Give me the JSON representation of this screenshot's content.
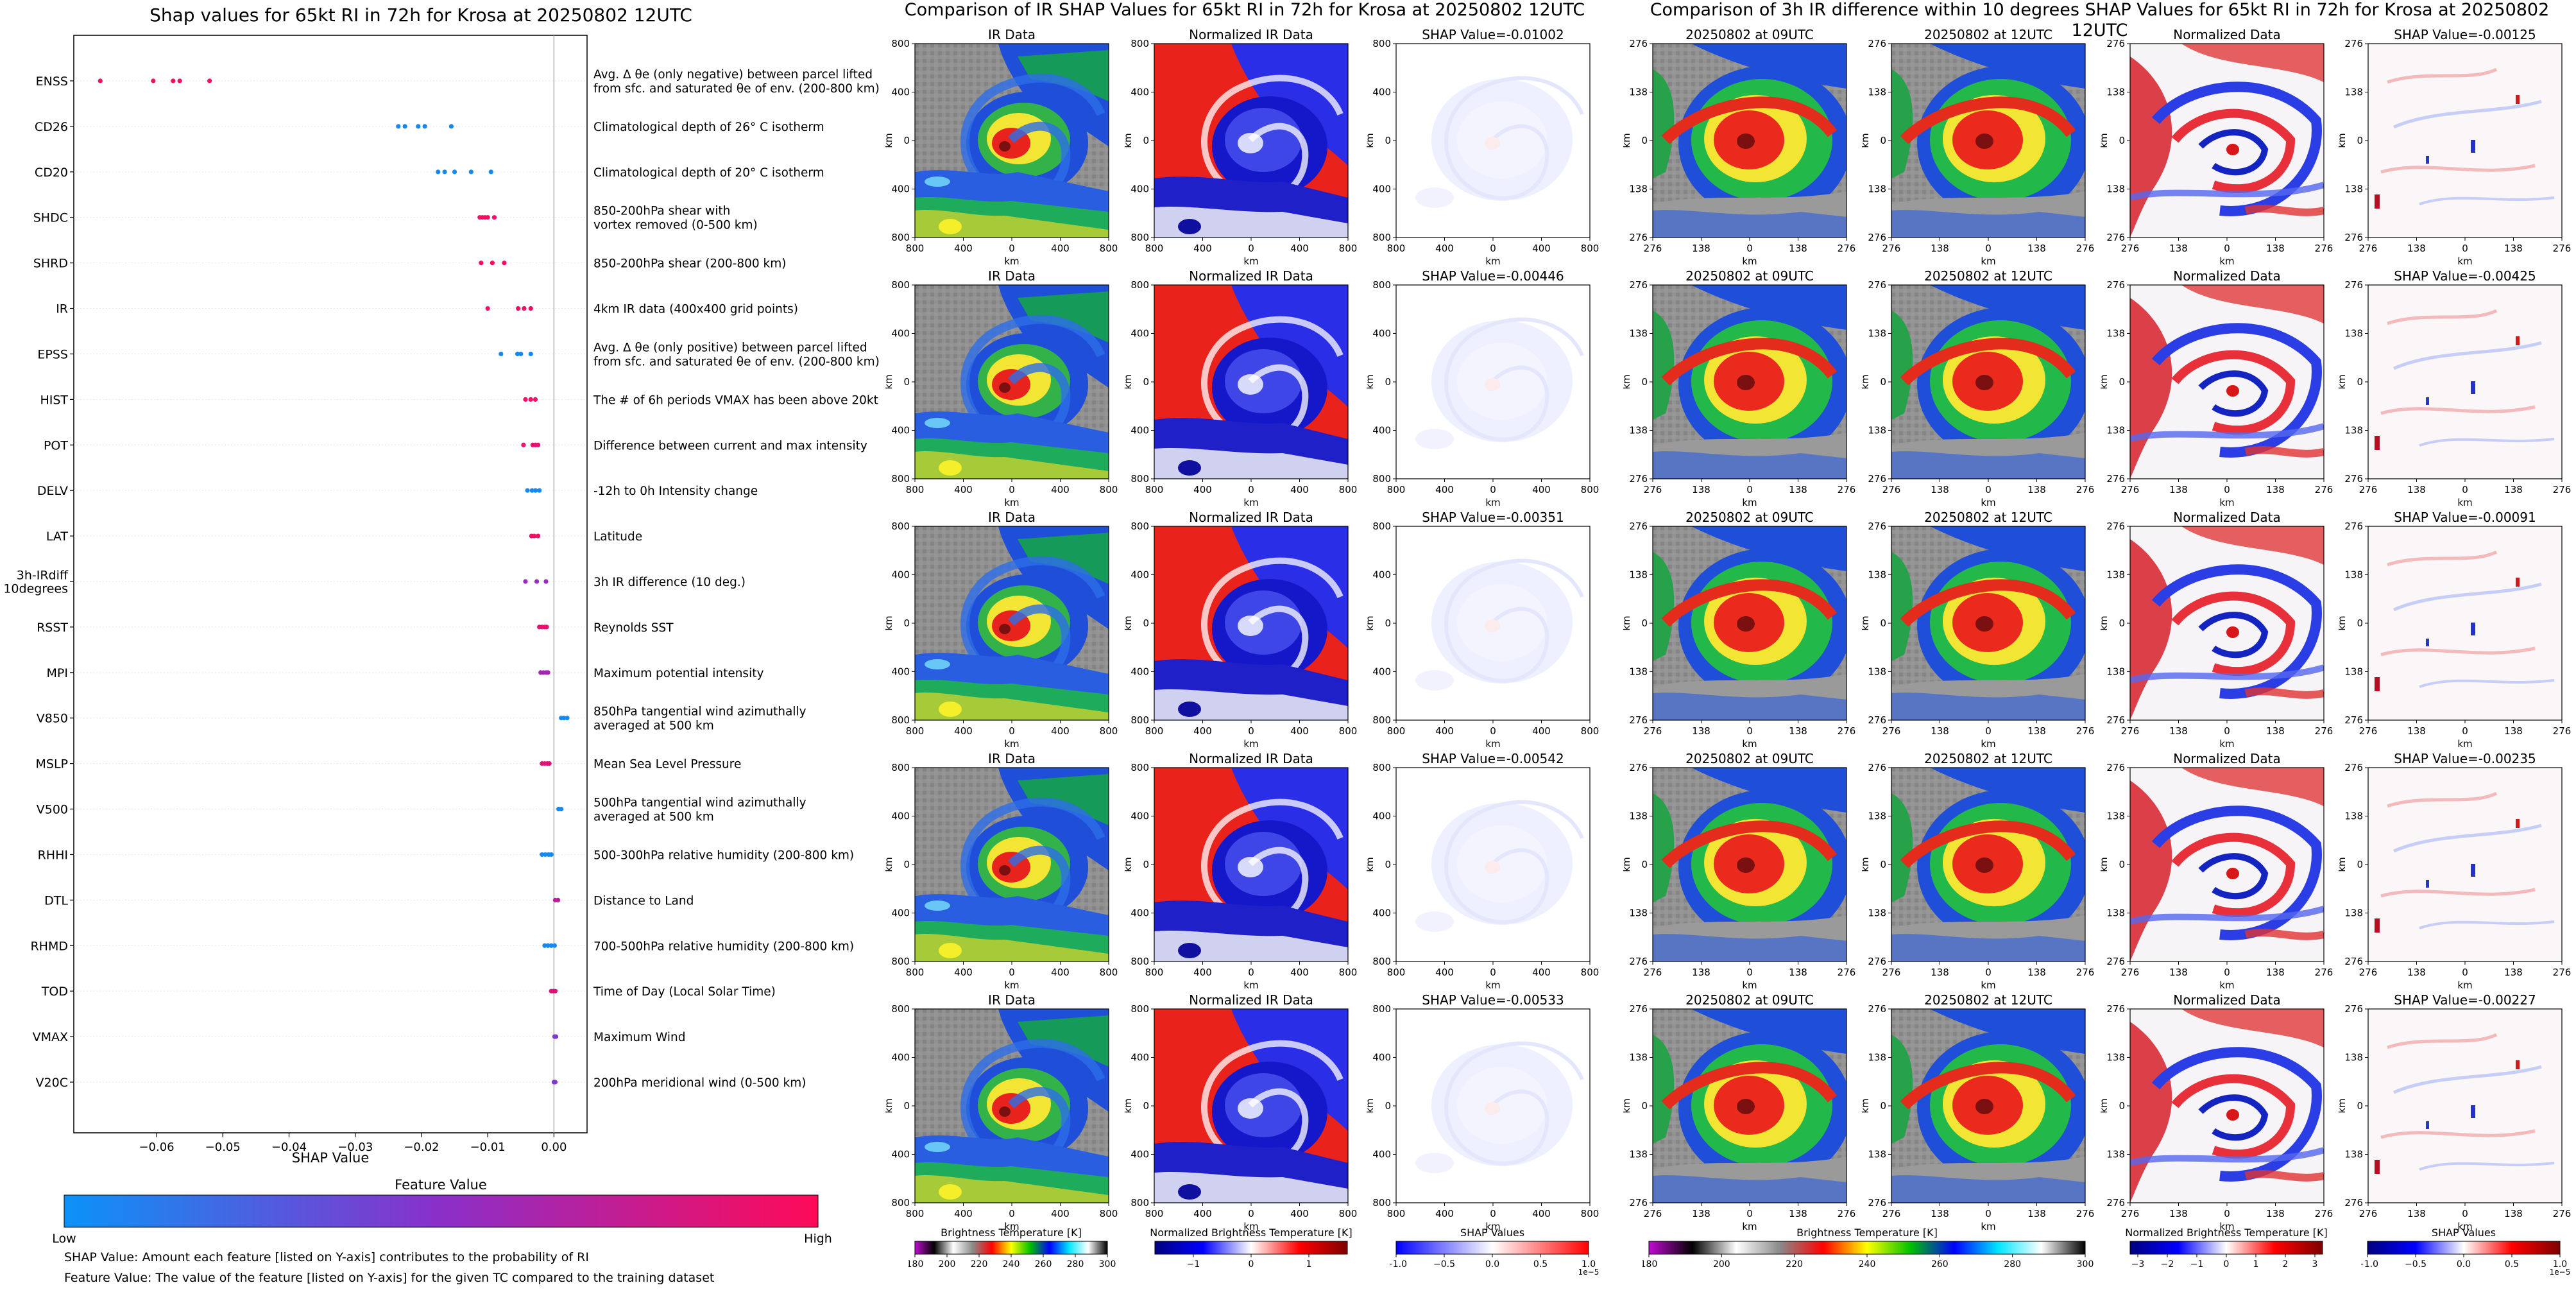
{
  "shap_panel": {
    "title": "Shap values for 65kt RI in 72h for Krosa at 20250802 12UTC",
    "xlabel": "SHAP Value",
    "colorbar_title": "Feature Value",
    "low_label": "Low",
    "high_label": "High",
    "footnote_1": "SHAP Value: Amount each feature [listed on Y-axis] contributes to the probability of RI",
    "footnote_2": "Feature Value: The value of the feature [listed on Y-axis] for the given TC compared to the training dataset",
    "low_color": "#0a93f8",
    "mid_color": "#8b2fc9",
    "high_color": "#ff0a58"
  },
  "ir_panel": {
    "title": "Comparison of IR SHAP Values for 65kt RI in 72h for Krosa at 20250802 12UTC",
    "column_titles": [
      "IR Data",
      "Normalized IR Data"
    ],
    "shap_titles": [
      "SHAP Value=-0.01002",
      "SHAP Value=-0.00446",
      "SHAP Value=-0.00351",
      "SHAP Value=-0.00542",
      "SHAP Value=-0.00533"
    ],
    "axis_label": "km",
    "ticks_x": [
      "800",
      "400",
      "0",
      "400",
      "800"
    ],
    "ticks_y": [
      "800",
      "400",
      "0",
      "400",
      "800"
    ],
    "colorbars": [
      {
        "label": "Brightness Temperature [K]",
        "ticks": [
          "180",
          "200",
          "220",
          "240",
          "260",
          "280",
          "300"
        ],
        "exponent": ""
      },
      {
        "label": "Normalized Brightness Temperature [K]",
        "ticks": [
          "−1",
          "0",
          "1"
        ],
        "exponent": ""
      },
      {
        "label": "SHAP Values",
        "ticks": [
          "−1.0",
          "−0.5",
          "0.0",
          "0.5",
          "1.0"
        ],
        "exponent": "1e−5"
      }
    ]
  },
  "diff_panel": {
    "title": "Comparison of 3h IR difference within 10 degrees SHAP Values for 65kt RI in 72h for Krosa at 20250802 12UTC",
    "column_titles": [
      "20250802 at 09UTC",
      "20250802 at 12UTC",
      "Normalized Data"
    ],
    "shap_titles": [
      "SHAP Value=-0.00125",
      "SHAP Value=-0.00425",
      "SHAP Value=-0.00091",
      "SHAP Value=-0.00235",
      "SHAP Value=-0.00227"
    ],
    "axis_label": "km",
    "ticks_x": [
      "276",
      "138",
      "0",
      "138",
      "276"
    ],
    "ticks_y": [
      "276",
      "138",
      "0",
      "138",
      "276"
    ],
    "colorbars": [
      {
        "label": "Brightness Temperature [K]",
        "ticks": [
          "180",
          "200",
          "220",
          "240",
          "260",
          "280",
          "300"
        ],
        "exponent": ""
      },
      {
        "label": "Normalized Brightness Temperature [K]",
        "ticks": [
          "−3",
          "−2",
          "−1",
          "0",
          "1",
          "2",
          "3"
        ],
        "exponent": ""
      },
      {
        "label": "SHAP Values",
        "ticks": [
          "−1.0",
          "−0.5",
          "0.0",
          "0.5",
          "1.0"
        ],
        "exponent": "1e−5"
      }
    ]
  },
  "chart_data": {
    "type": "scatter",
    "title": "Shap values for 65kt RI in 72h for Krosa at 20250802 12UTC",
    "xlabel": "SHAP Value",
    "xlim": [
      -0.0725,
      0.005
    ],
    "xticks": [
      -0.06,
      -0.05,
      -0.04,
      -0.03,
      -0.02,
      -0.01,
      0.0
    ],
    "xtick_labels": [
      "−0.06",
      "−0.05",
      "−0.04",
      "−0.03",
      "−0.02",
      "−0.01",
      "0.00"
    ],
    "features": [
      {
        "name": "ENSS",
        "description": "Avg. Δ θe (only negative) between parcel lifted\nfrom sfc. and saturated θe of env. (200-800 km)",
        "values": [
          -0.0685,
          -0.0605,
          -0.0575,
          -0.0565,
          -0.052
        ],
        "level": 0.95
      },
      {
        "name": "CD26",
        "description": "Climatological depth of 26° C isotherm",
        "values": [
          -0.0235,
          -0.0225,
          -0.0205,
          -0.0195,
          -0.0155
        ],
        "level": 0.05
      },
      {
        "name": "CD20",
        "description": "Climatological depth of 20° C isotherm",
        "values": [
          -0.0175,
          -0.0165,
          -0.015,
          -0.0125,
          -0.0095
        ],
        "level": 0.05
      },
      {
        "name": "SHDC",
        "description": "850-200hPa shear with\nvortex removed (0-500 km)",
        "values": [
          -0.0112,
          -0.0108,
          -0.0104,
          -0.01,
          -0.009
        ],
        "level": 0.95
      },
      {
        "name": "SHRD",
        "description": "850-200hPa shear (200-800 km)",
        "values": [
          -0.011,
          -0.0093,
          -0.0075
        ],
        "level": 0.95
      },
      {
        "name": "IR",
        "description": "4km IR data (400x400 grid points)",
        "values": [
          -0.01,
          -0.0054,
          -0.0045,
          -0.0035
        ],
        "level": 0.95
      },
      {
        "name": "EPSS",
        "description": "Avg. Δ θe (only positive) between parcel lifted\nfrom sfc. and saturated θe of env. (200-800 km)",
        "values": [
          -0.008,
          -0.0055,
          -0.005,
          -0.0035
        ],
        "level": 0.05
      },
      {
        "name": "HIST",
        "description": "The # of 6h periods VMAX has been above 20kt",
        "values": [
          -0.0043,
          -0.0035,
          -0.0028
        ],
        "level": 0.95
      },
      {
        "name": "POT",
        "description": "Difference between current and max intensity",
        "values": [
          -0.0046,
          -0.0032,
          -0.0028,
          -0.0024
        ],
        "level": 0.9
      },
      {
        "name": "DELV",
        "description": "-12h to 0h Intensity change",
        "values": [
          -0.004,
          -0.0033,
          -0.0028,
          -0.0022
        ],
        "level": 0.05
      },
      {
        "name": "LAT",
        "description": "Latitude",
        "values": [
          -0.0034,
          -0.003,
          -0.0024
        ],
        "level": 0.95
      },
      {
        "name": "3h-IRdiff\n10degrees",
        "description": "3h IR difference (10 deg.)",
        "values": [
          -0.0043,
          -0.0026,
          -0.0012
        ],
        "level": 0.55
      },
      {
        "name": "RSST",
        "description": "Reynolds SST",
        "values": [
          -0.0022,
          -0.0018,
          -0.0014,
          -0.0011
        ],
        "level": 0.9
      },
      {
        "name": "MPI",
        "description": "Maximum potential intensity",
        "values": [
          -0.002,
          -0.0016,
          -0.0012,
          -0.0009
        ],
        "level": 0.6
      },
      {
        "name": "V850",
        "description": "850hPa tangential wind azimuthally\naveraged at 500 km",
        "values": [
          0.0011,
          0.0015,
          0.002
        ],
        "level": 0.05
      },
      {
        "name": "MSLP",
        "description": "Mean Sea Level Pressure",
        "values": [
          -0.0018,
          -0.0014,
          -0.001,
          -0.0007
        ],
        "level": 0.85
      },
      {
        "name": "V500",
        "description": "500hPa tangential wind azimuthally\naveraged at 500 km",
        "values": [
          0.0007,
          0.0011
        ],
        "level": 0.05
      },
      {
        "name": "RHHI",
        "description": "500-300hPa relative humidity (200-800 km)",
        "values": [
          -0.0018,
          -0.0013,
          -0.0008,
          -0.0004
        ],
        "level": 0.05
      },
      {
        "name": "DTL",
        "description": "Distance to Land",
        "values": [
          0.0002,
          0.0006
        ],
        "level": 0.7
      },
      {
        "name": "RHMD",
        "description": "700-500hPa relative humidity (200-800 km)",
        "values": [
          -0.0014,
          -0.0009,
          -0.0004,
          0.0001
        ],
        "level": 0.05
      },
      {
        "name": "TOD",
        "description": "Time of Day (Local Solar Time)",
        "values": [
          -0.0004,
          -0.0001,
          0.0002
        ],
        "level": 0.85
      },
      {
        "name": "VMAX",
        "description": "Maximum Wind",
        "values": [
          0.0001,
          0.0003
        ],
        "level": 0.45
      },
      {
        "name": "V20C",
        "description": "200hPa meridional wind (0-500 km)",
        "values": [
          0.0,
          0.0002
        ],
        "level": 0.45
      }
    ]
  }
}
